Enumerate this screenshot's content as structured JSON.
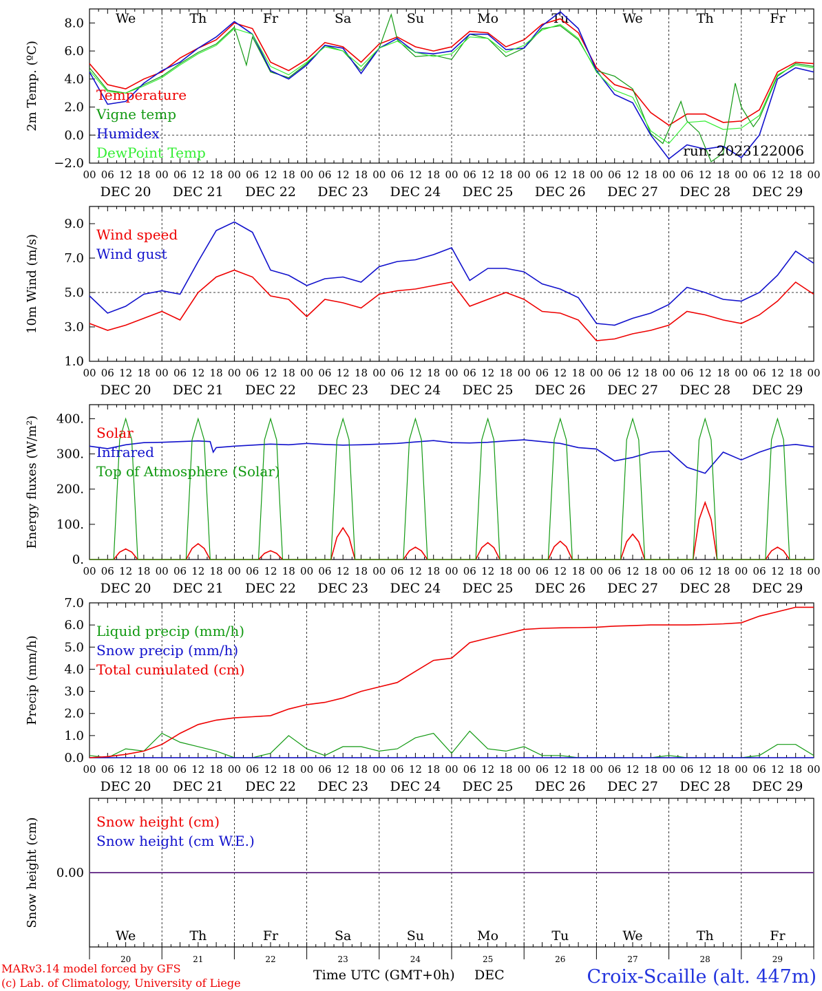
{
  "colors": {
    "red": "#ee0000",
    "green": "#119911",
    "blue": "#1111cc",
    "lightgreen": "#33ee33",
    "purple": "#6f3a8f",
    "dark": "#000000"
  },
  "hour_labels": [
    "00",
    "06",
    "12",
    "18"
  ],
  "day_names": [
    "We",
    "Th",
    "Fr",
    "Sa",
    "Su",
    "Mo",
    "Tu",
    "We",
    "Th",
    "Fr"
  ],
  "weekend_days": [
    3,
    4
  ],
  "date_labels": [
    "DEC 20",
    "DEC 21",
    "DEC 22",
    "DEC 23",
    "DEC 24",
    "DEC 25",
    "DEC 26",
    "DEC 27",
    "DEC 28",
    "DEC 29"
  ],
  "day_numbers": [
    "20",
    "21",
    "22",
    "23",
    "24",
    "25",
    "26",
    "27",
    "28",
    "29"
  ],
  "footer": {
    "credit_line1": "MARv3.14 model forced by GFS",
    "credit_line2": "(c) Lab. of Climatology, University of Liege",
    "xaxis_title": "Time UTC (GMT+0h)",
    "month": "DEC",
    "station": "Croix-Scaille (alt. 447m)"
  },
  "chart_data": [
    {
      "type": "line",
      "ylabel": "2m Temp. (ºC)",
      "ylim": [
        -2,
        9
      ],
      "yticks": [
        -2,
        0,
        2,
        4,
        6,
        8
      ],
      "ytick_labels": [
        "−2.0",
        "0.0",
        "2.0",
        "4.0",
        "6.0",
        "8.0"
      ],
      "ref_line": 0,
      "annotation": "run: 2023122006",
      "xlim_hours": [
        0,
        240
      ],
      "series": [
        {
          "name": "Temperature",
          "color": "red",
          "x": [
            0,
            6,
            12,
            18,
            24,
            30,
            36,
            42,
            48,
            54,
            60,
            66,
            72,
            78,
            84,
            90,
            96,
            102,
            108,
            114,
            120,
            126,
            132,
            138,
            144,
            150,
            156,
            162,
            168,
            174,
            180,
            186,
            192,
            198,
            204,
            210,
            216,
            222,
            228,
            234,
            240
          ],
          "values": [
            5.1,
            3.6,
            3.3,
            4.0,
            4.5,
            5.5,
            6.2,
            6.8,
            8.0,
            7.6,
            5.2,
            4.6,
            5.4,
            6.6,
            6.3,
            5.2,
            6.5,
            7.0,
            6.3,
            6.0,
            6.3,
            7.4,
            7.3,
            6.3,
            6.8,
            7.9,
            8.3,
            7.3,
            4.8,
            3.6,
            3.2,
            1.6,
            0.7,
            1.5,
            1.5,
            0.9,
            1.0,
            1.8,
            4.5,
            5.2,
            5.1
          ]
        },
        {
          "name": "Vigne temp",
          "color": "green",
          "x": [
            0,
            6,
            12,
            18,
            24,
            30,
            36,
            42,
            48,
            52,
            54,
            60,
            66,
            72,
            78,
            84,
            90,
            96,
            100,
            102,
            108,
            114,
            120,
            126,
            132,
            138,
            144,
            150,
            156,
            162,
            168,
            174,
            180,
            186,
            190,
            192,
            196,
            198,
            202,
            206,
            210,
            214,
            216,
            220,
            222,
            228,
            234,
            240
          ],
          "values": [
            4.8,
            3.2,
            3.0,
            3.6,
            4.2,
            5.1,
            5.9,
            6.5,
            7.7,
            5.0,
            7.0,
            4.5,
            4.1,
            5.1,
            6.4,
            6.0,
            4.6,
            6.2,
            8.6,
            6.8,
            5.6,
            5.7,
            5.4,
            7.2,
            6.9,
            5.6,
            6.2,
            7.6,
            7.8,
            6.8,
            4.6,
            4.2,
            3.3,
            0.1,
            -0.6,
            0.4,
            2.4,
            1.0,
            0.2,
            -1.9,
            -1.3,
            3.7,
            2.0,
            0.6,
            1.2,
            4.2,
            5.1,
            4.9
          ]
        },
        {
          "name": "Humidex",
          "color": "blue",
          "x": [
            0,
            6,
            12,
            18,
            24,
            30,
            36,
            42,
            48,
            54,
            60,
            66,
            72,
            78,
            84,
            90,
            96,
            102,
            108,
            114,
            120,
            126,
            132,
            138,
            144,
            150,
            156,
            162,
            168,
            174,
            180,
            186,
            192,
            198,
            204,
            210,
            216,
            222,
            228,
            234,
            240
          ],
          "values": [
            4.5,
            2.2,
            2.4,
            3.7,
            4.6,
            5.2,
            6.2,
            7.0,
            8.1,
            7.2,
            4.6,
            4.0,
            5.0,
            6.4,
            6.2,
            4.4,
            6.2,
            6.9,
            5.9,
            5.8,
            6.0,
            7.2,
            7.2,
            6.1,
            6.2,
            7.8,
            8.8,
            7.6,
            4.6,
            2.9,
            2.3,
            0.0,
            -1.7,
            -0.7,
            -1.0,
            -0.8,
            -1.6,
            0.0,
            4.0,
            4.8,
            4.5
          ]
        },
        {
          "name": "DewPoint Temp",
          "color": "lightgreen",
          "x": [
            0,
            6,
            12,
            18,
            24,
            30,
            36,
            42,
            48,
            54,
            60,
            66,
            72,
            78,
            84,
            90,
            96,
            102,
            108,
            114,
            120,
            126,
            132,
            138,
            144,
            150,
            156,
            162,
            168,
            174,
            180,
            186,
            192,
            198,
            204,
            210,
            216,
            222,
            228,
            234,
            240
          ],
          "values": [
            4.6,
            3.1,
            3.0,
            3.5,
            4.1,
            5.0,
            5.8,
            6.4,
            7.6,
            7.2,
            4.9,
            4.3,
            5.2,
            6.3,
            6.0,
            4.9,
            6.2,
            6.7,
            5.9,
            5.6,
            5.8,
            7.0,
            6.9,
            5.9,
            6.4,
            7.5,
            7.9,
            6.9,
            4.5,
            3.2,
            2.7,
            0.3,
            -0.6,
            0.9,
            1.0,
            0.4,
            0.5,
            1.4,
            4.3,
            5.0,
            4.8
          ]
        }
      ]
    },
    {
      "type": "line",
      "ylabel": "10m Wind (m/s)",
      "ylim": [
        1,
        10
      ],
      "yticks": [
        1,
        3,
        5,
        7,
        9
      ],
      "ytick_labels": [
        "1.0",
        "3.0",
        "5.0",
        "7.0",
        "9.0"
      ],
      "ref_line": 5,
      "xlim_hours": [
        0,
        240
      ],
      "series": [
        {
          "name": "Wind speed",
          "color": "red",
          "x": [
            0,
            6,
            12,
            18,
            24,
            30,
            36,
            42,
            48,
            54,
            60,
            66,
            72,
            78,
            84,
            90,
            96,
            102,
            108,
            114,
            120,
            126,
            132,
            138,
            144,
            150,
            156,
            162,
            168,
            174,
            180,
            186,
            192,
            198,
            204,
            210,
            216,
            222,
            228,
            234,
            240
          ],
          "values": [
            3.2,
            2.8,
            3.1,
            3.5,
            3.9,
            3.4,
            5.0,
            5.9,
            6.3,
            5.9,
            4.8,
            4.6,
            3.6,
            4.6,
            4.4,
            4.1,
            4.9,
            5.1,
            5.2,
            5.4,
            5.6,
            4.2,
            4.6,
            5.0,
            4.6,
            3.9,
            3.8,
            3.4,
            2.2,
            2.3,
            2.6,
            2.8,
            3.1,
            3.9,
            3.7,
            3.4,
            3.2,
            3.7,
            4.5,
            5.6,
            4.9
          ]
        },
        {
          "name": "Wind gust",
          "color": "blue",
          "x": [
            0,
            6,
            12,
            18,
            24,
            30,
            36,
            42,
            48,
            54,
            60,
            66,
            72,
            78,
            84,
            90,
            96,
            102,
            108,
            114,
            120,
            126,
            132,
            138,
            144,
            150,
            156,
            162,
            168,
            174,
            180,
            186,
            192,
            198,
            204,
            210,
            216,
            222,
            228,
            234,
            240
          ],
          "values": [
            4.8,
            3.8,
            4.2,
            4.9,
            5.1,
            4.9,
            6.8,
            8.6,
            9.1,
            8.5,
            6.3,
            6.0,
            5.4,
            5.8,
            5.9,
            5.6,
            6.5,
            6.8,
            6.9,
            7.2,
            7.6,
            5.7,
            6.4,
            6.4,
            6.2,
            5.5,
            5.2,
            4.7,
            3.2,
            3.1,
            3.5,
            3.8,
            4.3,
            5.3,
            5.0,
            4.6,
            4.5,
            5.0,
            6.0,
            7.4,
            6.7
          ]
        }
      ]
    },
    {
      "type": "line",
      "ylabel": "Energy fluxes (W/m²)",
      "ylim": [
        0,
        440
      ],
      "yticks": [
        0,
        100,
        200,
        300,
        400
      ],
      "ytick_labels": [
        "0.",
        "100.",
        "200.",
        "300.",
        "400."
      ],
      "xlim_hours": [
        0,
        240
      ],
      "series": [
        {
          "name": "Solar",
          "color": "red",
          "solar_peaks": [
            30,
            45,
            25,
            90,
            35,
            48,
            52,
            72,
            162,
            35
          ]
        },
        {
          "name": "Infrared",
          "color": "blue",
          "x": [
            0,
            6,
            12,
            18,
            24,
            30,
            36,
            40,
            41,
            42,
            48,
            54,
            60,
            66,
            72,
            78,
            84,
            90,
            96,
            102,
            108,
            114,
            120,
            126,
            132,
            138,
            144,
            150,
            156,
            162,
            168,
            174,
            180,
            186,
            192,
            198,
            204,
            210,
            216,
            222,
            228,
            234,
            240
          ],
          "values": [
            322,
            315,
            326,
            332,
            333,
            335,
            337,
            335,
            305,
            318,
            322,
            325,
            328,
            326,
            330,
            327,
            325,
            326,
            328,
            330,
            334,
            338,
            332,
            331,
            333,
            337,
            340,
            335,
            330,
            318,
            314,
            280,
            290,
            305,
            308,
            262,
            245,
            305,
            283,
            305,
            322,
            327,
            320
          ]
        },
        {
          "name": "Top of Atmosphere (Solar)",
          "color": "green",
          "toa_peak": 400
        }
      ]
    },
    {
      "type": "line",
      "ylabel": "Precip (mm/h)",
      "ylim": [
        0,
        7
      ],
      "yticks": [
        0,
        1,
        2,
        3,
        4,
        5,
        6,
        7
      ],
      "ytick_labels": [
        "0.0",
        "1.0",
        "2.0",
        "3.0",
        "4.0",
        "5.0",
        "6.0",
        "7.0"
      ],
      "xlim_hours": [
        0,
        240
      ],
      "series": [
        {
          "name": "Liquid precip (mm/h)",
          "color": "green",
          "x": [
            0,
            6,
            12,
            18,
            24,
            30,
            36,
            42,
            48,
            54,
            60,
            66,
            72,
            78,
            84,
            90,
            96,
            102,
            108,
            114,
            120,
            126,
            132,
            138,
            144,
            150,
            156,
            162,
            168,
            174,
            180,
            186,
            192,
            198,
            204,
            210,
            216,
            222,
            228,
            234,
            240
          ],
          "values": [
            0.1,
            0.0,
            0.4,
            0.3,
            1.1,
            0.7,
            0.5,
            0.3,
            0.0,
            0.0,
            0.2,
            1.0,
            0.4,
            0.1,
            0.5,
            0.5,
            0.3,
            0.4,
            0.9,
            1.1,
            0.2,
            1.2,
            0.4,
            0.3,
            0.5,
            0.1,
            0.1,
            0.0,
            0.0,
            0.0,
            0.0,
            0.0,
            0.1,
            0.0,
            0.0,
            0.0,
            0.0,
            0.1,
            0.6,
            0.6,
            0.1
          ]
        },
        {
          "name": "Snow precip (mm/h)",
          "color": "blue",
          "x": [
            0,
            240
          ],
          "values": [
            0,
            0
          ]
        },
        {
          "name": "Total cumulated (cm)",
          "color": "red",
          "x": [
            0,
            6,
            12,
            18,
            24,
            30,
            36,
            42,
            48,
            54,
            60,
            66,
            72,
            78,
            84,
            90,
            96,
            102,
            108,
            114,
            120,
            126,
            132,
            138,
            144,
            150,
            156,
            162,
            168,
            174,
            180,
            186,
            192,
            198,
            204,
            210,
            216,
            222,
            228,
            234,
            240
          ],
          "values": [
            0.0,
            0.05,
            0.15,
            0.3,
            0.6,
            1.1,
            1.5,
            1.7,
            1.8,
            1.85,
            1.9,
            2.2,
            2.4,
            2.5,
            2.7,
            3.0,
            3.2,
            3.4,
            3.9,
            4.4,
            4.5,
            5.2,
            5.4,
            5.6,
            5.8,
            5.85,
            5.87,
            5.88,
            5.9,
            5.95,
            5.97,
            6.0,
            6.0,
            6.0,
            6.02,
            6.05,
            6.1,
            6.4,
            6.6,
            6.8,
            6.8
          ]
        }
      ]
    },
    {
      "type": "line",
      "ylabel": "Snow height (cm)",
      "ylim": [
        -1,
        1
      ],
      "yticks": [
        0
      ],
      "ytick_labels": [
        "0.00"
      ],
      "xlim_hours": [
        0,
        240
      ],
      "series": [
        {
          "name": "Snow height (cm)",
          "color": "red",
          "x": [
            0,
            240
          ],
          "values": [
            0,
            0
          ]
        },
        {
          "name": "Snow height (cm W.E.)",
          "color": "blue",
          "x": [
            0,
            240
          ],
          "values": [
            0,
            0
          ]
        }
      ]
    }
  ]
}
